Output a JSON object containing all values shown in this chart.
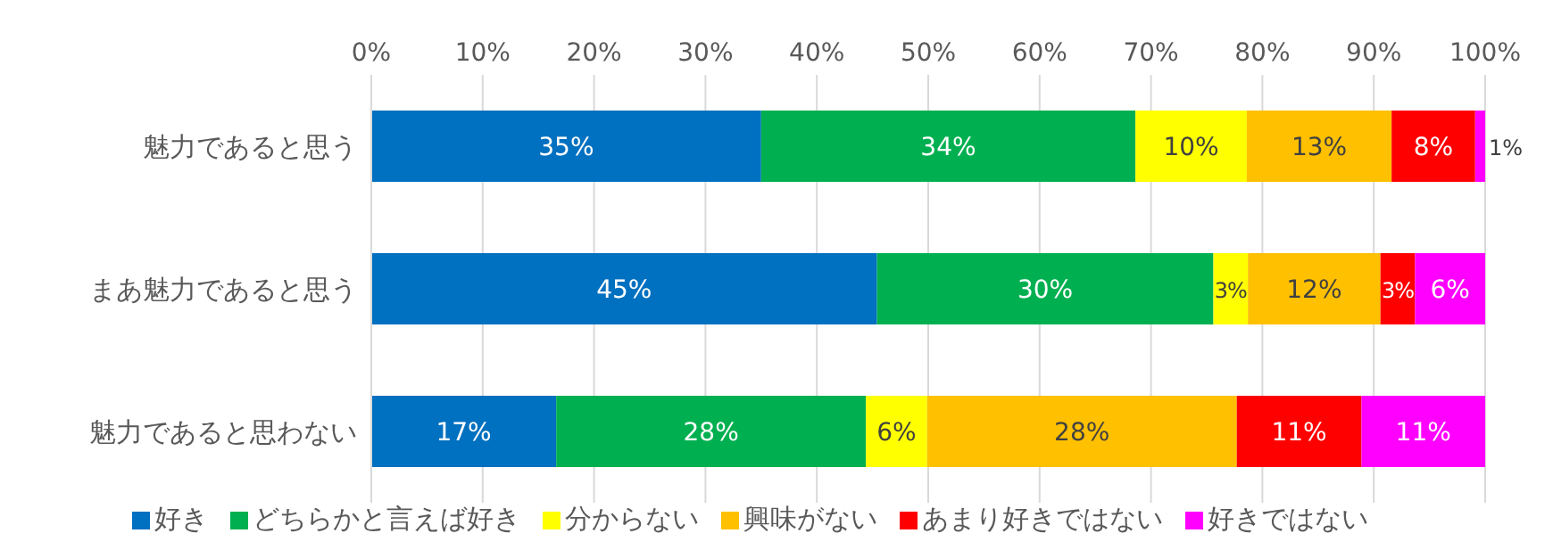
{
  "chart_data": {
    "type": "bar",
    "orientation": "horizontal",
    "stacked": true,
    "categories": [
      "魅力であると思う",
      "まあ魅力であると思う",
      "魅力であると思わない"
    ],
    "series": [
      {
        "name": "好き",
        "color": "#0070c0",
        "values": [
          35,
          45.4,
          16.6
        ],
        "value_labels": [
          "35%",
          "45%",
          "17%"
        ]
      },
      {
        "name": "どちらかと言えば好き",
        "color": "#00b050",
        "values": [
          33.6,
          30.2,
          27.8
        ],
        "value_labels": [
          "34%",
          "30%",
          "28%"
        ]
      },
      {
        "name": "分からない",
        "color": "#ffff00",
        "values": [
          10,
          3.1,
          5.5
        ],
        "value_labels": [
          "10%",
          "3%",
          "6%"
        ]
      },
      {
        "name": "興味がない",
        "color": "#ffc000",
        "values": [
          13,
          11.9,
          27.8
        ],
        "value_labels": [
          "13%",
          "12%",
          "28%"
        ]
      },
      {
        "name": "あまり好きではない",
        "color": "#ff0000",
        "values": [
          7.5,
          3.1,
          11.2
        ],
        "value_labels": [
          "8%",
          "3%",
          "11%"
        ]
      },
      {
        "name": "好きではない",
        "color": "#ff00ff",
        "values": [
          0.9,
          6.3,
          11.1
        ],
        "value_labels": [
          "1%",
          "6%",
          "11%"
        ]
      }
    ],
    "xlim": [
      0,
      100
    ],
    "xticks": [
      {
        "value": 0,
        "label": "0%"
      },
      {
        "value": 10,
        "label": "10%"
      },
      {
        "value": 20,
        "label": "20%"
      },
      {
        "value": 30,
        "label": "30%"
      },
      {
        "value": 40,
        "label": "40%"
      },
      {
        "value": 50,
        "label": "50%"
      },
      {
        "value": 60,
        "label": "60%"
      },
      {
        "value": 70,
        "label": "70%"
      },
      {
        "value": 80,
        "label": "80%"
      },
      {
        "value": 90,
        "label": "90%"
      },
      {
        "value": 100,
        "label": "100%"
      }
    ],
    "grid": "x",
    "legend": "bottom"
  }
}
